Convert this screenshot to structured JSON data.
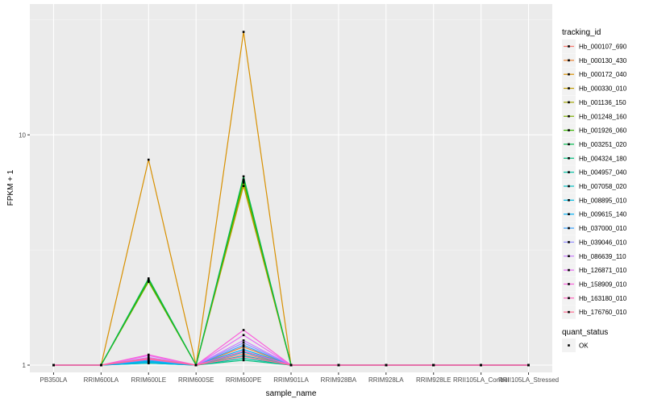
{
  "chart_data": {
    "type": "line",
    "xlabel": "sample_name",
    "ylabel": "FPKM + 1",
    "y_scale": "log10",
    "ylim": [
      0.93,
      37
    ],
    "y_ticks": [
      {
        "value": 1,
        "label": "1"
      },
      {
        "value": 10,
        "label": "10"
      }
    ],
    "categories": [
      "PB350LA",
      "RRIM600LA",
      "RRIM600LE",
      "RRIM600SE",
      "RRIM600PE",
      "RRIM901LA",
      "RRIM928BA",
      "RRIM928LA",
      "RRIM928LE",
      "RRII105LA_Control",
      "RRII105LA_Stressed"
    ],
    "grid": true,
    "legend_position": "right",
    "legend_title": "tracking_id",
    "series": [
      {
        "name": "Hb_000107_690",
        "color": "#F8766D",
        "values": [
          1,
          1,
          1.04,
          1,
          1.12,
          1,
          1,
          1,
          1,
          1,
          1
        ]
      },
      {
        "name": "Hb_000130_430",
        "color": "#EA8331",
        "values": [
          1,
          1,
          1.05,
          1,
          1.2,
          1,
          1,
          1,
          1,
          1,
          1
        ]
      },
      {
        "name": "Hb_000172_040",
        "color": "#D89000",
        "values": [
          1,
          1,
          7.8,
          1,
          28,
          1,
          1,
          1,
          1,
          1,
          1
        ]
      },
      {
        "name": "Hb_000330_010",
        "color": "#C09B00",
        "values": [
          1,
          1,
          2.33,
          1,
          6.0,
          1,
          1,
          1,
          1,
          1,
          1
        ]
      },
      {
        "name": "Hb_001136_150",
        "color": "#A3A500",
        "values": [
          1,
          1,
          2.35,
          1,
          6.2,
          1,
          1,
          1,
          1,
          1,
          1
        ]
      },
      {
        "name": "Hb_001248_160",
        "color": "#7CAE00",
        "values": [
          1,
          1,
          2.3,
          1,
          6.3,
          1,
          1,
          1,
          1,
          1,
          1
        ]
      },
      {
        "name": "Hb_001926_060",
        "color": "#39B600",
        "values": [
          1,
          1,
          2.33,
          1,
          6.4,
          1,
          1,
          1,
          1,
          1,
          1
        ]
      },
      {
        "name": "Hb_003251_020",
        "color": "#00BB4E",
        "values": [
          1,
          1,
          2.38,
          1,
          6.6,
          1,
          1,
          1,
          1,
          1,
          1
        ]
      },
      {
        "name": "Hb_004324_180",
        "color": "#00BF7D",
        "values": [
          1,
          1,
          1.02,
          1,
          1.05,
          1,
          1,
          1,
          1,
          1,
          1
        ]
      },
      {
        "name": "Hb_004957_040",
        "color": "#00C1A3",
        "values": [
          1,
          1,
          1.03,
          1,
          1.07,
          1,
          1,
          1,
          1,
          1,
          1
        ]
      },
      {
        "name": "Hb_007058_020",
        "color": "#00BFC4",
        "values": [
          1,
          1,
          1.02,
          1,
          1.1,
          1,
          1,
          1,
          1,
          1,
          1
        ]
      },
      {
        "name": "Hb_008895_010",
        "color": "#00BAE0",
        "values": [
          1,
          1,
          1.04,
          1,
          1.14,
          1,
          1,
          1,
          1,
          1,
          1
        ]
      },
      {
        "name": "Hb_009615_140",
        "color": "#00B0F6",
        "values": [
          1,
          1,
          1.03,
          1,
          1.17,
          1,
          1,
          1,
          1,
          1,
          1
        ]
      },
      {
        "name": "Hb_037000_010",
        "color": "#35A2FF",
        "values": [
          1,
          1,
          1.05,
          1,
          1.22,
          1,
          1,
          1,
          1,
          1,
          1
        ]
      },
      {
        "name": "Hb_039046_010",
        "color": "#9590FF",
        "values": [
          1,
          1,
          1.06,
          1,
          1.25,
          1,
          1,
          1,
          1,
          1,
          1
        ]
      },
      {
        "name": "Hb_086639_110",
        "color": "#C77CFF",
        "values": [
          1,
          1,
          1.08,
          1,
          1.28,
          1,
          1,
          1,
          1,
          1,
          1
        ]
      },
      {
        "name": "Hb_126871_010",
        "color": "#E76BF3",
        "values": [
          1,
          1,
          1.1,
          1,
          1.35,
          1,
          1,
          1,
          1,
          1,
          1
        ]
      },
      {
        "name": "Hb_158909_010",
        "color": "#FA62DB",
        "values": [
          1,
          1,
          1.11,
          1,
          1.42,
          1,
          1,
          1,
          1,
          1,
          1
        ]
      },
      {
        "name": "Hb_163180_010",
        "color": "#FF62BC",
        "values": [
          1,
          1,
          1.06,
          1,
          1.15,
          1,
          1,
          1,
          1,
          1,
          1
        ]
      },
      {
        "name": "Hb_176760_010",
        "color": "#FF6C91",
        "values": [
          1,
          1,
          1.07,
          1,
          1.09,
          1,
          1,
          1,
          1,
          1,
          1
        ]
      }
    ],
    "point_legend": {
      "title": "quant_status",
      "entries": [
        "OK"
      ]
    }
  }
}
